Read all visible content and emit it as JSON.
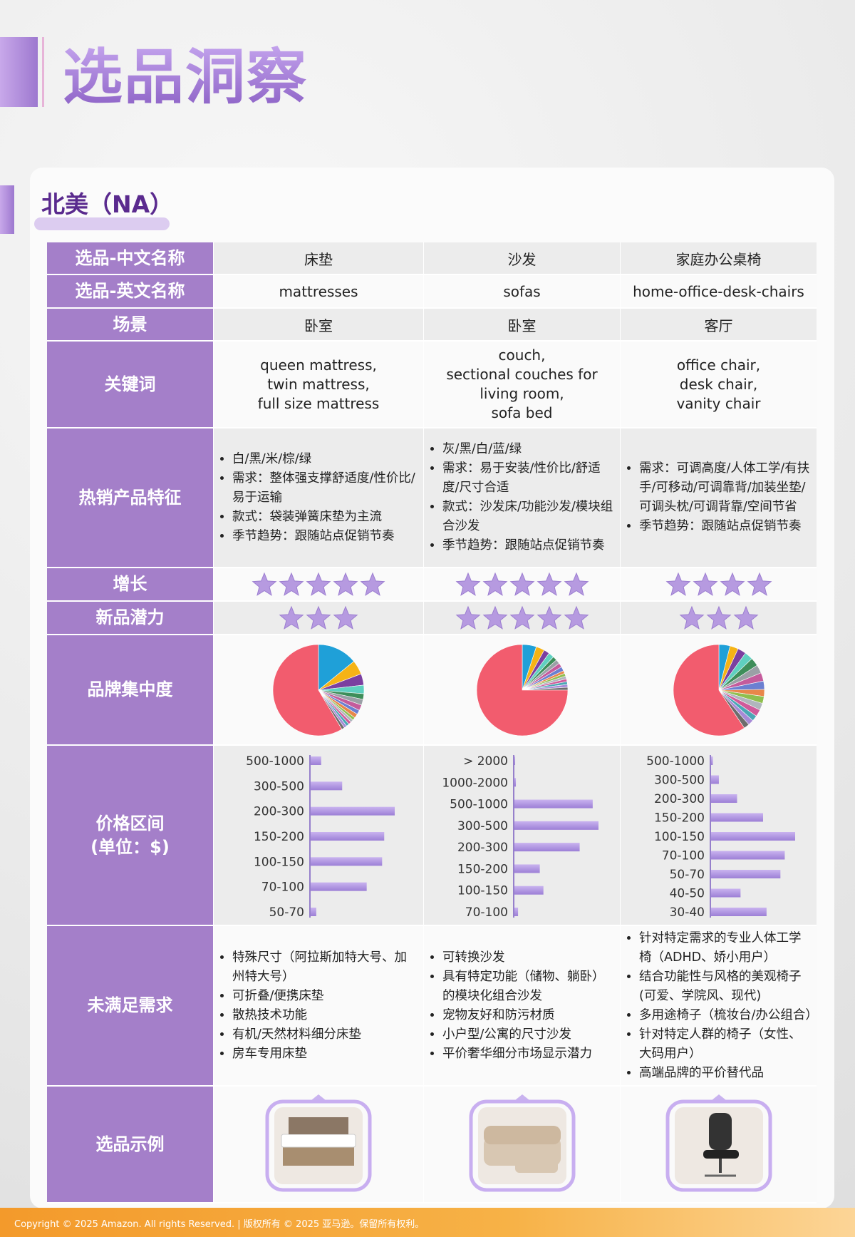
{
  "header": {
    "title": "选品洞察"
  },
  "region": {
    "title": "北美（NA）"
  },
  "table": {
    "row_labels": [
      "选品-中文名称",
      "选品-英文名称",
      "场景",
      "关键词",
      "热销产品特征",
      "增长",
      "新品潜力",
      "品牌集中度",
      "价格区间",
      "未满足需求",
      "选品示例"
    ],
    "price_unit_label": "(单位：$)",
    "pie_colors": [
      "#1fa0d8",
      "#f5b316",
      "#7b3fa0",
      "#5fd0c0",
      "#3e8e5a",
      "#9aa0a6",
      "#c45b9c",
      "#6b7fd1",
      "#e8874a",
      "#8fbf4f",
      "#b0b6bd",
      "#d05a9a",
      "#4aa7b5",
      "#a78ad6",
      "#6d6d6d",
      "#f25c6e"
    ],
    "columns": [
      {
        "name_cn": "床垫",
        "name_en": "mattresses",
        "scene": "卧室",
        "keywords": [
          "queen mattress,",
          "twin mattress,",
          "full size mattress"
        ],
        "features": [
          "白/黑/米/棕/绿",
          "需求：整体强支撑舒适度/性价比/易于运输",
          "款式：袋装弹簧床垫为主流",
          "季节趋势：跟随站点促销节奏"
        ],
        "growth": 5,
        "potential": 3,
        "brand_share": [
          14,
          5,
          4,
          3,
          2,
          2,
          2,
          1.5,
          1.5,
          1,
          1,
          1,
          1,
          1,
          1,
          58
        ],
        "price": {
          "categories": [
            "500-1000",
            "300-500",
            "200-300",
            "150-200",
            "100-150",
            "70-100",
            "50-70"
          ],
          "values": [
            15,
            45,
            120,
            105,
            102,
            80,
            8
          ]
        },
        "unmet": [
          "特殊尺寸（阿拉斯加特大号、加州特大号）",
          "可折叠/便携床垫",
          "散热技术功能",
          "有机/天然材料细分床垫",
          "房车专用床垫"
        ]
      },
      {
        "name_cn": "沙发",
        "name_en": "sofas",
        "scene": "卧室",
        "keywords": [
          "couch,",
          "sectional couches for living room,",
          "sofa bed"
        ],
        "features": [
          "灰/黑/白/蓝/绿",
          "需求：易于安装/性价比/舒适度/尺寸合适",
          "款式：沙发床/功能沙发/模块组合沙发",
          "季节趋势：跟随站点促销节奏"
        ],
        "growth": 5,
        "potential": 5,
        "brand_share": [
          5,
          3,
          2,
          2,
          1.5,
          1.5,
          1.5,
          1.5,
          1,
          1,
          1,
          1,
          1,
          1,
          1,
          75
        ],
        "price": {
          "categories": [
            "> 2000",
            "1000-2000",
            "500-1000",
            "300-500",
            "200-300",
            "150-200",
            "100-150",
            "70-100"
          ],
          "values": [
            1,
            2,
            108,
            116,
            90,
            35,
            40,
            5
          ]
        },
        "unmet": [
          "可转换沙发",
          "具有特定功能（储物、躺卧）的模块化组合沙发",
          "宠物友好和防污材质",
          "小户型/公寓的尺寸沙发",
          "平价奢华细分市场显示潜力"
        ]
      },
      {
        "name_cn": "家庭办公桌椅",
        "name_en": "home-office-desk-chairs",
        "scene": "客厅",
        "keywords": [
          "office chair,",
          "desk chair,",
          "vanity chair"
        ],
        "features": [
          "需求：可调高度/人体工学/有扶手/可移动/可调靠背/加装坐垫/可调头枕/可调背靠/空间节省",
          "季节趋势：跟随站点促销节奏"
        ],
        "growth": 4,
        "potential": 3,
        "brand_share": [
          4,
          3,
          3,
          3,
          3,
          3,
          3,
          3,
          2.5,
          2.5,
          2.5,
          2.5,
          2,
          2,
          2,
          60
        ],
        "price": {
          "categories": [
            "500-1000",
            "300-500",
            "200-300",
            "150-200",
            "100-150",
            "70-100",
            "50-70",
            "40-50",
            "30-40"
          ],
          "values": [
            2,
            9,
            30,
            60,
            97,
            85,
            80,
            34,
            64
          ]
        },
        "unmet": [
          "针对特定需求的专业人体工学椅（ADHD、娇小用户）",
          "结合功能性与风格的美观椅子(可爱、学院风、现代)",
          "多用途椅子（梳妆台/办公组合）",
          "针对特定人群的椅子（女性、大码用户）",
          "高端品牌的平价替代品"
        ]
      }
    ]
  },
  "footer": {
    "text": "Copyright © 2025 Amazon. All rights Reserved. | 版权所有 © 2025 亚马逊。保留所有权利。"
  }
}
